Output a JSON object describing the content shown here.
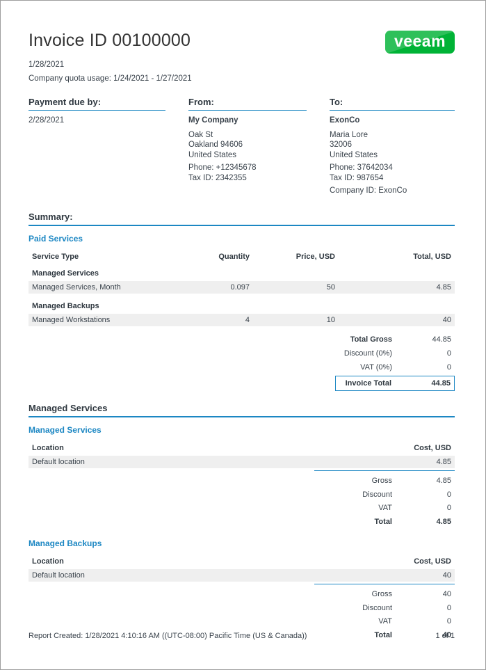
{
  "header": {
    "title": "Invoice ID 00100000",
    "date": "1/28/2021",
    "quota_usage": "Company quota usage: 1/24/2021 - 1/27/2021",
    "logo_text": "veeam"
  },
  "parties": {
    "payment": {
      "heading": "Payment due by:",
      "due_date": "2/28/2021"
    },
    "from": {
      "heading": "From:",
      "company": "My Company",
      "address": [
        "Oak St",
        "Oakland 94606",
        "United States"
      ],
      "phone": "Phone: +12345678",
      "tax_id": "Tax ID: 2342355"
    },
    "to": {
      "heading": "To:",
      "company": "ExonCo",
      "address": [
        "Maria Lore",
        "32006",
        "United States"
      ],
      "phone": "Phone: 37642034",
      "tax_id": "Tax ID: 987654",
      "company_id": "Company ID: ExonCo"
    }
  },
  "summary": {
    "heading": "Summary:",
    "subheading": "Paid Services",
    "columns": [
      "Service Type",
      "Quantity",
      "Price, USD",
      "Total, USD"
    ],
    "groups": [
      {
        "name": "Managed Services",
        "rows": [
          {
            "service": "Managed Services, Month",
            "quantity": "0.097",
            "price": "50",
            "total": "4.85"
          }
        ]
      },
      {
        "name": "Managed Backups",
        "rows": [
          {
            "service": "Managed Workstations",
            "quantity": "4",
            "price": "10",
            "total": "40"
          }
        ]
      }
    ],
    "totals": [
      {
        "label": "Total Gross",
        "value": "44.85"
      },
      {
        "label": "Discount (0%)",
        "value": "0"
      },
      {
        "label": "VAT (0%)",
        "value": "0"
      }
    ],
    "invoice_total": {
      "label": "Invoice Total",
      "value": "44.85"
    }
  },
  "details": {
    "heading": "Managed Services",
    "sections": [
      {
        "name": "Managed Services",
        "columns": [
          "Location",
          "Cost, USD"
        ],
        "rows": [
          {
            "location": "Default location",
            "cost": "4.85"
          }
        ],
        "totals": [
          {
            "label": "Gross",
            "value": "4.85"
          },
          {
            "label": "Discount",
            "value": "0"
          },
          {
            "label": "VAT",
            "value": "0"
          },
          {
            "label": "Total",
            "value": "4.85"
          }
        ]
      },
      {
        "name": "Managed Backups",
        "columns": [
          "Location",
          "Cost, USD"
        ],
        "rows": [
          {
            "location": "Default location",
            "cost": "40"
          }
        ],
        "totals": [
          {
            "label": "Gross",
            "value": "40"
          },
          {
            "label": "Discount",
            "value": "0"
          },
          {
            "label": "VAT",
            "value": "0"
          },
          {
            "label": "Total",
            "value": "40"
          }
        ]
      }
    ]
  },
  "footer": {
    "report_created": "Report Created:  1/28/2021 4:10:16 AM ((UTC-08:00) Pacific Time (US & Canada))",
    "page_number": "1 of 1"
  },
  "colors": {
    "accent_blue": "#1c87c3",
    "brand_green": "#00b336",
    "row_gray": "#efefef",
    "text_dark": "#3a434c"
  }
}
